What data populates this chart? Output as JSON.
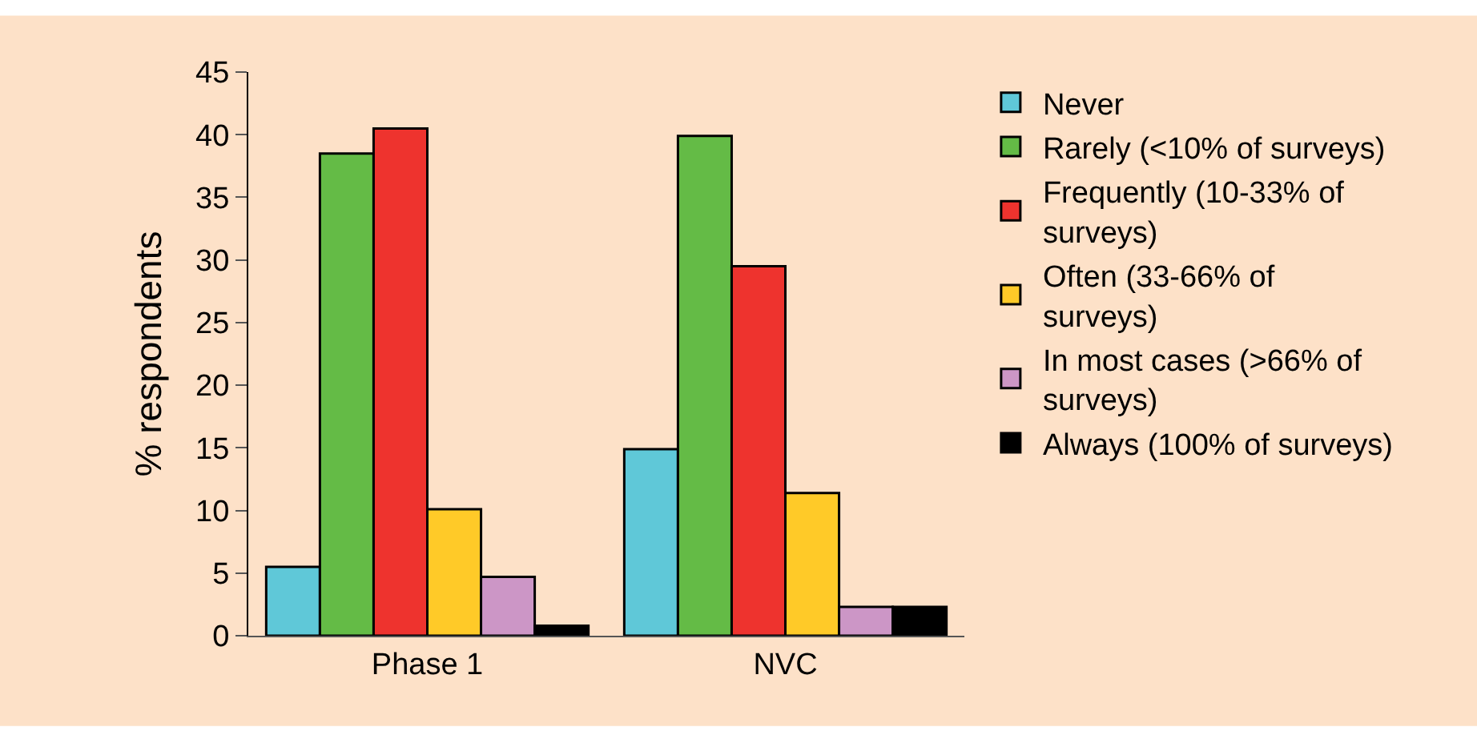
{
  "chart_data": {
    "type": "bar",
    "ylabel": "% respondents",
    "categories": [
      "Phase 1",
      "NVC"
    ],
    "series": [
      {
        "name": "Never",
        "color": "#5fc8d8",
        "values": [
          5.5,
          14.9
        ]
      },
      {
        "name": "Rarely (<10% of surveys)",
        "color": "#64bb46",
        "values": [
          38.5,
          39.9
        ]
      },
      {
        "name": "Frequently (10-33% of surveys)",
        "color": "#ee332e",
        "values": [
          40.5,
          29.5
        ]
      },
      {
        "name": "Often (33-66% of surveys)",
        "color": "#ffca28",
        "values": [
          10.1,
          11.4
        ]
      },
      {
        "name": "In most cases (>66% of surveys)",
        "color": "#cc96c6",
        "values": [
          4.7,
          2.3
        ]
      },
      {
        "name": "Always (100% of surveys)",
        "color": "#000000",
        "values": [
          0.8,
          2.3
        ]
      }
    ],
    "ylim": [
      0,
      45
    ],
    "yticks": [
      0,
      5,
      10,
      15,
      20,
      25,
      30,
      35,
      40,
      45
    ],
    "grid": false,
    "legend": "right"
  }
}
